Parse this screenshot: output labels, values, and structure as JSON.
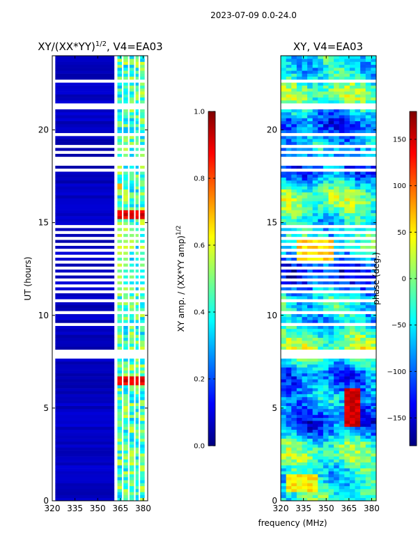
{
  "figure": {
    "suptitle": "2023-07-09 0.0-24.0",
    "xlabel": "frequency (MHz)"
  },
  "colors": {
    "jet": [
      "#00007f",
      "#0000ff",
      "#007fff",
      "#00ffff",
      "#7fff7f",
      "#ffff00",
      "#ff7f00",
      "#ff0000",
      "#7f0000"
    ],
    "gap": "#ffffff",
    "axis": "#000000"
  },
  "chart_data": [
    {
      "type": "heatmap",
      "name": "amplitude",
      "title": "XY/(XX*YY)",
      "title_exp": "1/2",
      "title_suffix": ", V4=EA03",
      "xlabel": "",
      "ylabel": "UT (hours)",
      "xlim": [
        320,
        383
      ],
      "ylim": [
        0,
        24
      ],
      "xticks": [
        320,
        335,
        350,
        365,
        380
      ],
      "yticks": [
        0,
        5,
        10,
        15,
        20
      ],
      "channel_groups_mhz": [
        [
          322,
          361
        ],
        [
          363,
          366
        ],
        [
          367,
          370
        ],
        [
          371,
          374
        ],
        [
          375,
          377
        ],
        [
          378,
          381
        ]
      ],
      "notable_features": [
        {
          "ut_hours": [
            15.2,
            15.6
          ],
          "freq_mhz": [
            362,
            381
          ],
          "level": "high (~0.9)"
        },
        {
          "ut_hours": [
            6.2,
            6.7
          ],
          "freq_mhz": [
            362,
            381
          ],
          "level": "high (~0.9)"
        },
        {
          "ut_hours": [
            16.8,
            17.2
          ],
          "freq_mhz": [
            362,
            366
          ],
          "level": "mid (~0.7)"
        }
      ],
      "background_level": "low (~0.05) below 361 MHz, 0.3-0.6 in upper channels",
      "colorbar": {
        "label": "XY amp. / (XX*YY amp)",
        "label_exp": "1/2",
        "range": [
          0.0,
          1.0
        ],
        "ticks": [
          "0.0",
          "0.2",
          "0.4",
          "0.6",
          "0.8",
          "1.0"
        ]
      }
    },
    {
      "type": "heatmap",
      "name": "phase",
      "title": "XY, V4=EA03",
      "xlabel": "frequency (MHz)",
      "ylabel": "",
      "xlim": [
        320,
        383
      ],
      "ylim": [
        0,
        24
      ],
      "xticks": [
        320,
        335,
        350,
        365,
        380
      ],
      "yticks": [
        0,
        5,
        10,
        15,
        20
      ],
      "notable_features": [
        {
          "ut_hours": [
            13.0,
            14.0
          ],
          "freq_mhz": [
            330,
            355
          ],
          "level": "~+60 deg"
        },
        {
          "ut_hours": [
            4.0,
            6.0
          ],
          "freq_mhz": [
            363,
            372
          ],
          "level": "~+150 deg"
        },
        {
          "ut_hours": [
            0.5,
            1.5
          ],
          "freq_mhz": [
            322,
            345
          ],
          "level": "~+50 deg"
        }
      ],
      "colorbar": {
        "label": "phase (deg.)",
        "range": [
          -180,
          180
        ],
        "ticks": [
          "-150",
          "-100",
          "-50",
          "0",
          "50",
          "100",
          "150"
        ]
      }
    }
  ]
}
